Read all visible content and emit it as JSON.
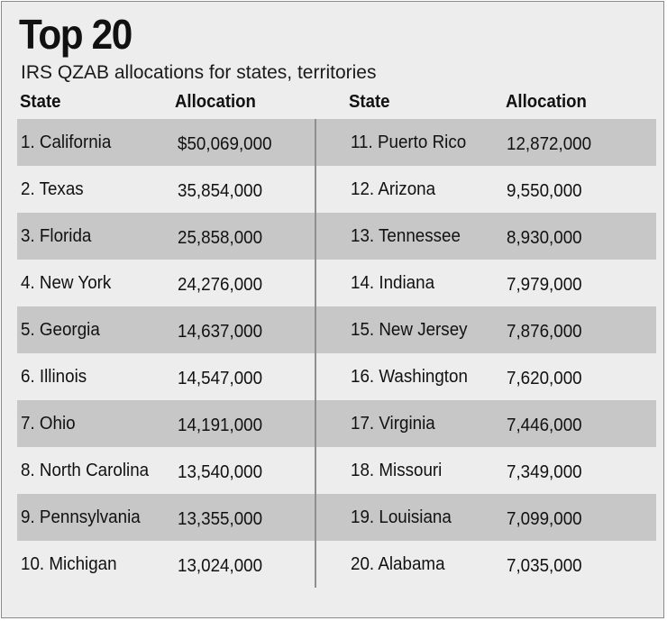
{
  "chart_data": {
    "type": "table",
    "title": "Top 20",
    "subtitle": "IRS QZAB allocations for states, territories",
    "columns": [
      "State",
      "Allocation",
      "State",
      "Allocation"
    ],
    "rows": [
      {
        "rank": 1,
        "state": "1. California",
        "allocation": "$50,069,000",
        "value": 50069000
      },
      {
        "rank": 2,
        "state": "2. Texas",
        "allocation": "35,854,000",
        "value": 35854000
      },
      {
        "rank": 3,
        "state": "3. Florida",
        "allocation": "25,858,000",
        "value": 25858000
      },
      {
        "rank": 4,
        "state": "4. New York",
        "allocation": "24,276,000",
        "value": 24276000
      },
      {
        "rank": 5,
        "state": "5. Georgia",
        "allocation": "14,637,000",
        "value": 14637000
      },
      {
        "rank": 6,
        "state": "6. Illinois",
        "allocation": "14,547,000",
        "value": 14547000
      },
      {
        "rank": 7,
        "state": "7. Ohio",
        "allocation": "14,191,000",
        "value": 14191000
      },
      {
        "rank": 8,
        "state": "8. North Carolina",
        "allocation": "13,540,000",
        "value": 13540000
      },
      {
        "rank": 9,
        "state": "9. Pennsylvania",
        "allocation": "13,355,000",
        "value": 13355000
      },
      {
        "rank": 10,
        "state": "10. Michigan",
        "allocation": "13,024,000",
        "value": 13024000
      },
      {
        "rank": 11,
        "state": "11. Puerto Rico",
        "allocation": "12,872,000",
        "value": 12872000
      },
      {
        "rank": 12,
        "state": "12. Arizona",
        "allocation": "9,550,000",
        "value": 9550000
      },
      {
        "rank": 13,
        "state": "13. Tennessee",
        "allocation": "8,930,000",
        "value": 8930000
      },
      {
        "rank": 14,
        "state": "14. Indiana",
        "allocation": "7,979,000",
        "value": 7979000
      },
      {
        "rank": 15,
        "state": "15. New Jersey",
        "allocation": "7,876,000",
        "value": 7876000
      },
      {
        "rank": 16,
        "state": "16. Washington",
        "allocation": "7,620,000",
        "value": 7620000
      },
      {
        "rank": 17,
        "state": "17. Virginia",
        "allocation": "7,446,000",
        "value": 7446000
      },
      {
        "rank": 18,
        "state": "18. Missouri",
        "allocation": "7,349,000",
        "value": 7349000
      },
      {
        "rank": 19,
        "state": "19. Louisiana",
        "allocation": "7,099,000",
        "value": 7099000
      },
      {
        "rank": 20,
        "state": "20. Alabama",
        "allocation": "7,035,000",
        "value": 7035000
      }
    ],
    "band_colors": [
      "#c7c7c7",
      "#ededed"
    ],
    "text_color": "#111111"
  }
}
